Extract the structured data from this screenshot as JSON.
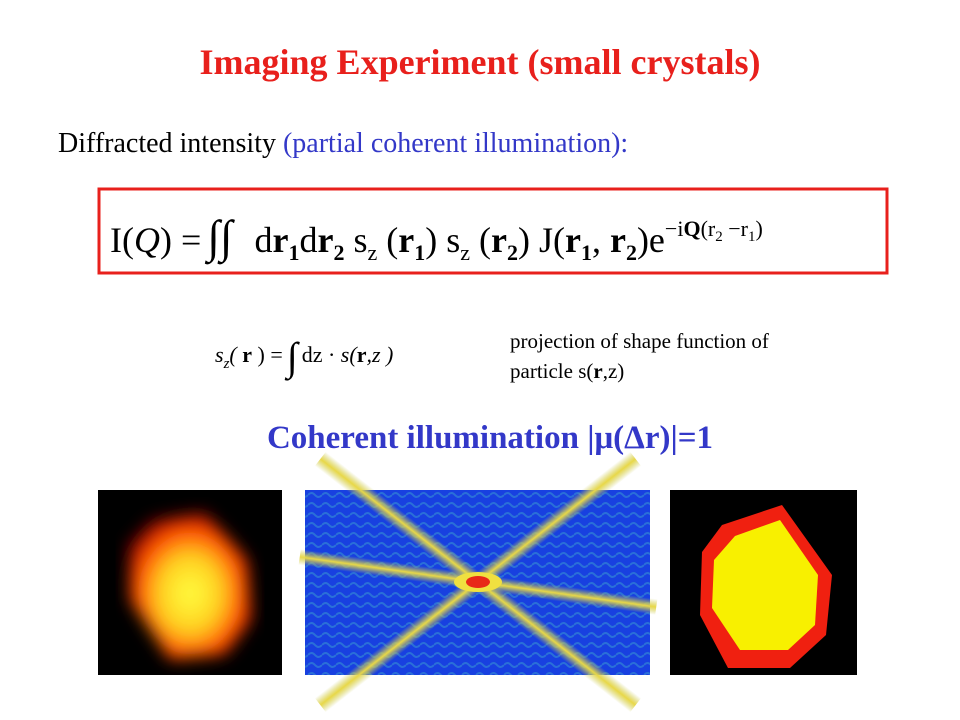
{
  "title": "Imaging Experiment (small crystals)",
  "intro": {
    "text": "Diffracted intensity",
    "note": "(partial coherent illumination):"
  },
  "equation": {
    "parts": [
      "I(",
      "Q",
      ") =",
      "∫∫",
      "d",
      "r",
      "1",
      "d",
      "r",
      "2",
      " s",
      "z",
      " (",
      "r",
      "1",
      ") s",
      "z",
      " (",
      "r",
      "2",
      ") J(",
      "r",
      "1",
      ", ",
      "r",
      "2",
      ")e",
      "−i",
      "Q",
      "(r",
      "2",
      " −r",
      "1",
      ")"
    ]
  },
  "projection": {
    "parts": [
      "s",
      "z",
      "( ",
      "r",
      " ) =",
      "∫",
      "dz · ",
      "s(",
      "r",
      ",z )"
    ],
    "description": [
      "projection of shape function of",
      "particle s(",
      "r",
      ",z)"
    ]
  },
  "subtitle": "Coherent illumination |μ(Δr)|=1"
}
